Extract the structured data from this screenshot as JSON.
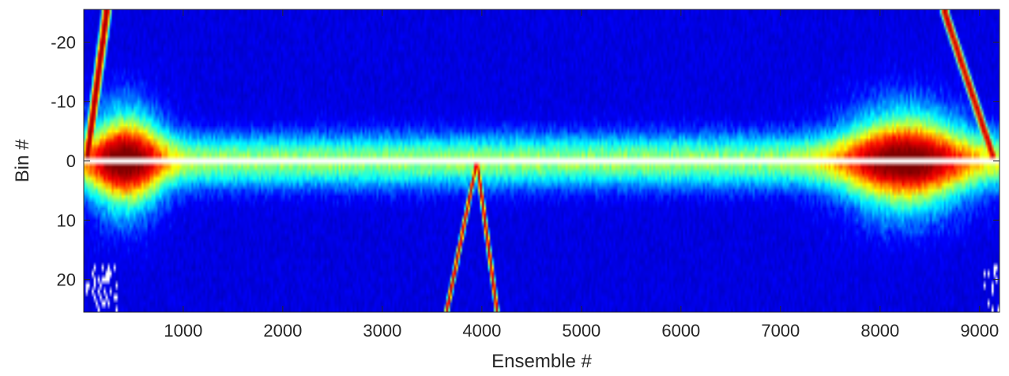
{
  "chart_data": {
    "type": "heatmap",
    "title": "",
    "xlabel": "Ensemble #",
    "ylabel": "Bin #",
    "xlim": [
      1,
      9200
    ],
    "ylim": [
      -25.5,
      25.5
    ],
    "y_reversed": true,
    "xticks": [
      1000,
      2000,
      3000,
      4000,
      5000,
      6000,
      7000,
      8000,
      9000
    ],
    "yticks": [
      -20,
      -10,
      0,
      10,
      20
    ],
    "colormap": "jet",
    "colormap_stops": [
      "#00008f",
      "#0000ff",
      "#00ffff",
      "#ffff00",
      "#ff0000",
      "#800000"
    ],
    "masked_row_bin": 0,
    "masked_color": "#ffffff",
    "features": {
      "near_range_band": {
        "bins": [
          -4,
          4
        ],
        "level": 0.45
      },
      "left_cluster": {
        "x_range": [
          1,
          900
        ],
        "bins": [
          -15,
          15
        ],
        "level": 0.6
      },
      "right_cluster": {
        "x_range": [
          7700,
          9200
        ],
        "bins": [
          -15,
          15
        ],
        "level": 0.6
      },
      "left_edge_line": {
        "x_at_bin0": 30,
        "x_at_bin_minus25": 230
      },
      "right_edge_line": {
        "x_at_bin0": 9150,
        "x_at_bin_minus25": 8650
      },
      "center_v": {
        "x_apex": 3950,
        "x_left_at_bin25": 3650,
        "x_right_at_bin25": 4150
      }
    }
  }
}
